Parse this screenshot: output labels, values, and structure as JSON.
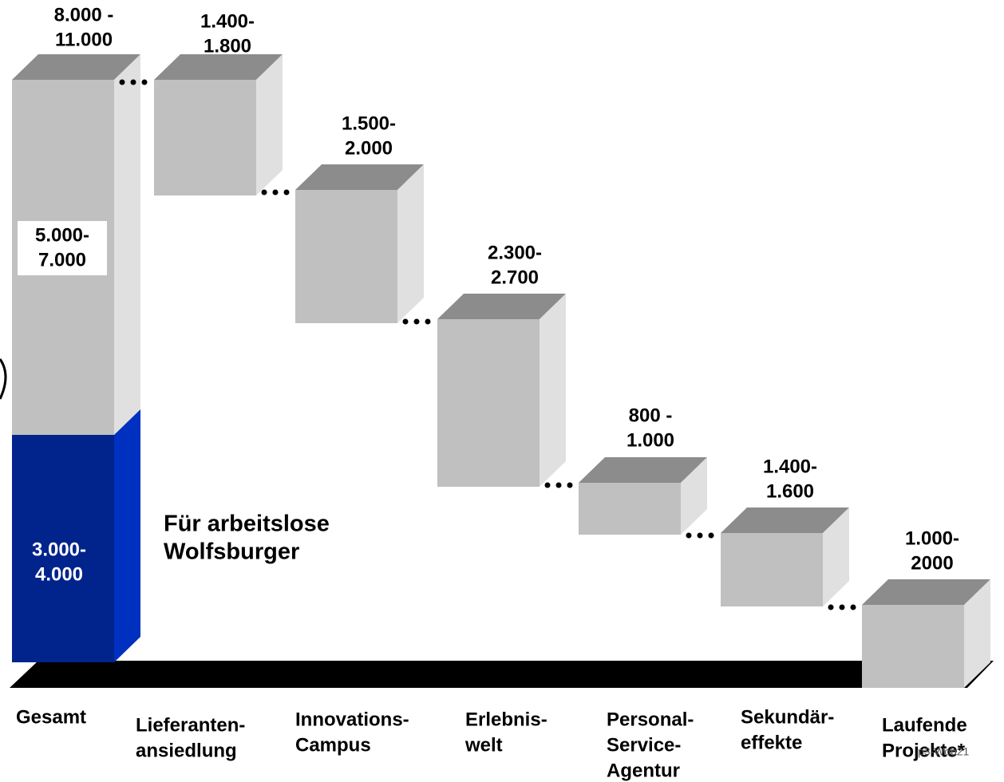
{
  "chart_data": {
    "type": "waterfall-3d",
    "categories": [
      [
        "Gesamt"
      ],
      [
        "Lieferanten-",
        "ansiedlung"
      ],
      [
        "Innovations-",
        "Campus"
      ],
      [
        "Erlebnis-",
        "welt"
      ],
      [
        "Personal-",
        "Service-",
        "Agentur"
      ],
      [
        "Sekundär-",
        "effekte"
      ],
      [
        "Laufende",
        "Projekte*"
      ]
    ],
    "value_labels": [
      [
        "8.000 -",
        "11.000"
      ],
      [
        "1.400-",
        "1.800"
      ],
      [
        "1.500-",
        "2.000"
      ],
      [
        "2.300-",
        "2.700"
      ],
      [
        "800 -",
        "1.000"
      ],
      [
        "1.400-",
        "1.600"
      ],
      [
        "1.000-",
        "2000"
      ]
    ],
    "segments": [
      {
        "label": [
          "5.000-",
          "7.000"
        ],
        "color": "#c0c0c0"
      },
      {
        "label": [
          "3.000-",
          "4.000"
        ],
        "color": "#00238c"
      }
    ],
    "annotation": [
      "Für arbeitslose",
      "Wolfsburger"
    ],
    "page_id": "p3-Wob21",
    "color": "#c0c0c0"
  }
}
